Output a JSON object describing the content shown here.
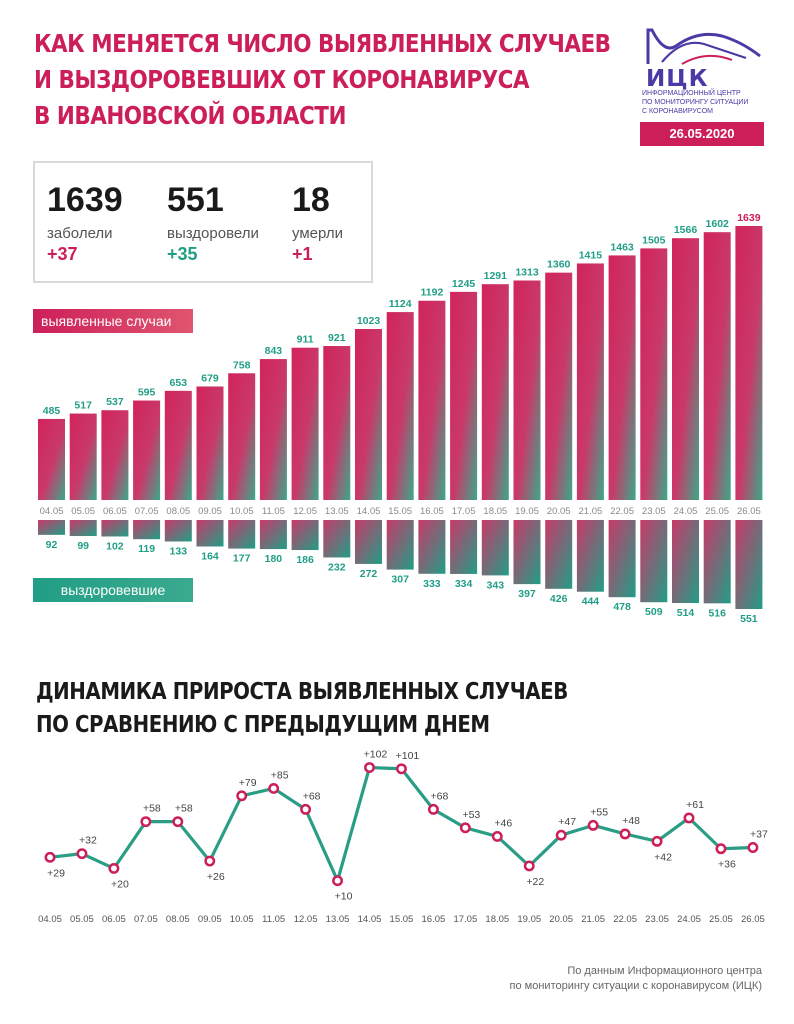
{
  "title_lines": [
    "КАК МЕНЯЕТСЯ ЧИСЛО ВЫЯВЛЕННЫХ СЛУЧАЕВ",
    "И ВЫЗДОРОВЕВШИХ ОТ КОРОНАВИРУСА",
    "В ИВАНОВСКОЙ ОБЛАСТИ"
  ],
  "logo": {
    "brand": "ИЦК",
    "sub_lines": [
      "ИНФОРМАЦИОННЫЙ ЦЕНТР",
      "ПО МОНИТОРИНГУ СИТУАЦИИ",
      "С КОРОНАВИРУСОМ"
    ],
    "date": "26.05.2020"
  },
  "stats": [
    {
      "value": "1639",
      "label": "заболели",
      "delta": "+37"
    },
    {
      "value": "551",
      "label": "выздоровели",
      "delta": "+35"
    },
    {
      "value": "18",
      "label": "умерли",
      "delta": "+1"
    }
  ],
  "legend": {
    "cases": "выявленные случаи",
    "recovered": "выздоровевшие"
  },
  "subtitle_lines": [
    "ДИНАМИКА ПРИРОСТА ВЫЯВЛЕННЫХ СЛУЧАЕВ",
    "ПО СРАВНЕНИЮ С ПРЕДЫДУЩИМ ДНЕМ"
  ],
  "source_lines": [
    "По данным Информационного центра",
    "по мониторингу ситуации с коронавирусом (ИЦК)"
  ],
  "colors": {
    "cases": "#cc1f59",
    "recovered": "#219e86",
    "line": "#2a9d86",
    "brand": "#4a3aa6"
  },
  "chart_data": [
    {
      "type": "bar",
      "categories": [
        "04.05",
        "05.05",
        "06.05",
        "07.05",
        "08.05",
        "09.05",
        "10.05",
        "11.05",
        "12.05",
        "13.05",
        "14.05",
        "15.05",
        "16.05",
        "17.05",
        "18.05",
        "19.05",
        "20.05",
        "21.05",
        "22.05",
        "23.05",
        "24.05",
        "25.05",
        "26.05"
      ],
      "series": [
        {
          "name": "выявленные случаи",
          "values": [
            485,
            517,
            537,
            595,
            653,
            679,
            758,
            843,
            911,
            921,
            1023,
            1124,
            1192,
            1245,
            1291,
            1313,
            1360,
            1415,
            1463,
            1505,
            1566,
            1602,
            1639
          ]
        },
        {
          "name": "выздоровевшие",
          "values": [
            92,
            99,
            102,
            119,
            133,
            164,
            177,
            180,
            186,
            232,
            272,
            307,
            333,
            334,
            343,
            397,
            426,
            444,
            478,
            509,
            514,
            516,
            551
          ]
        }
      ]
    },
    {
      "type": "line",
      "categories": [
        "04.05",
        "05.05",
        "06.05",
        "07.05",
        "08.05",
        "09.05",
        "10.05",
        "11.05",
        "12.05",
        "13.05",
        "14.05",
        "15.05",
        "16.05",
        "17.05",
        "18.05",
        "19.05",
        "20.05",
        "21.05",
        "22.05",
        "23.05",
        "24.05",
        "25.05",
        "26.05"
      ],
      "values": [
        29,
        32,
        20,
        58,
        58,
        26,
        79,
        85,
        68,
        10,
        102,
        101,
        68,
        53,
        46,
        22,
        47,
        55,
        48,
        42,
        61,
        36,
        37
      ],
      "labels": [
        "+29",
        "+32",
        "+20",
        "+58",
        "+58",
        "+26",
        "+79",
        "+85",
        "+68",
        "+10",
        "+102",
        "+101",
        "+68",
        "+53",
        "+46",
        "+22",
        "+47",
        "+55",
        "+48",
        "+42",
        "+61",
        "+36",
        "+37"
      ]
    }
  ]
}
